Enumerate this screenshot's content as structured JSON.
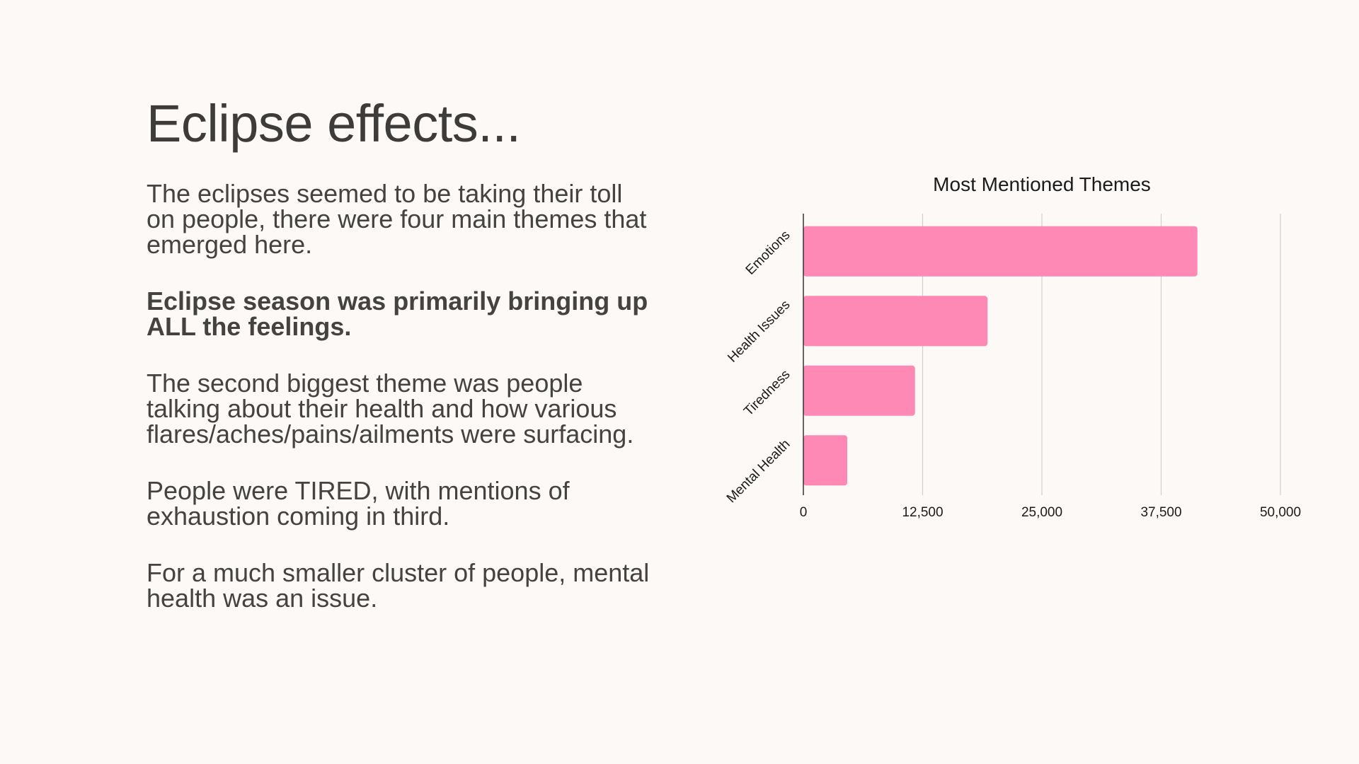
{
  "slide": {
    "title": "Eclipse effects...",
    "paragraphs": [
      {
        "text": "The eclipses seemed to be taking their toll on people, there were four main themes that emerged here.",
        "bold": false
      },
      {
        "text": "Eclipse season was primarily bringing up ALL the feelings.",
        "bold": true
      },
      {
        "text": "The second biggest theme was people talking about their health and how various flares/aches/pains/ailments were surfacing.",
        "bold": false
      },
      {
        "text": "People were TIRED, with mentions of exhaustion coming in third.",
        "bold": false
      },
      {
        "text": "For a much smaller cluster of people, mental health was an issue.",
        "bold": false
      }
    ]
  },
  "chart_data": {
    "type": "bar",
    "orientation": "horizontal",
    "title": "Most Mentioned Themes",
    "categories": [
      "Emotions",
      "Health Issues",
      "Tiredness",
      "Mental Health"
    ],
    "values": [
      41300,
      19300,
      11700,
      4600
    ],
    "xlim": [
      0,
      50000
    ],
    "x_ticks": [
      "0",
      "12,500",
      "25,000",
      "37,500",
      "50,000"
    ],
    "x_tick_values": [
      0,
      12500,
      25000,
      37500,
      50000
    ],
    "grid": true,
    "bar_color": "#fd89b4",
    "grid_color": "#cfcfcf",
    "axis_color": "#333333"
  }
}
